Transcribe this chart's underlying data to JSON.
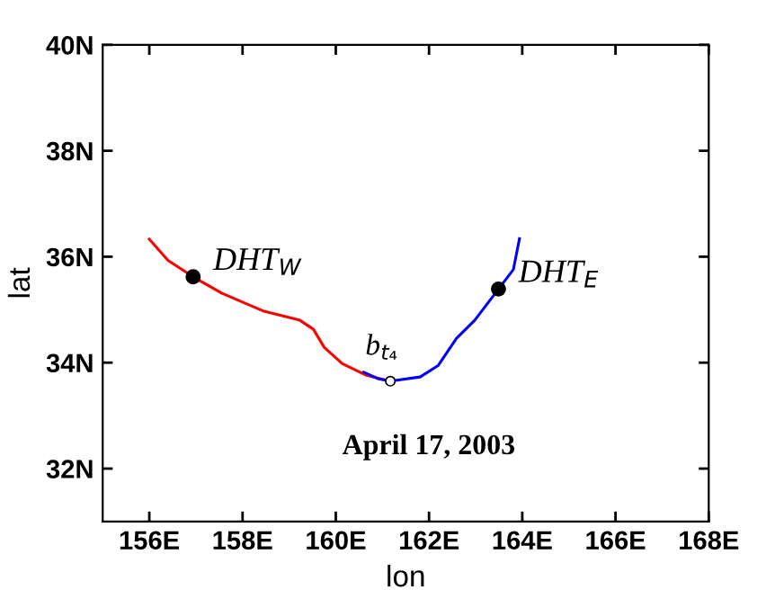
{
  "chart_data": {
    "type": "line",
    "xlabel": "lon",
    "ylabel": "lat",
    "xlim": [
      155,
      168
    ],
    "xticks": [
      {
        "value": 156,
        "label": "156E"
      },
      {
        "value": 158,
        "label": "158E"
      },
      {
        "value": 160,
        "label": "160E"
      },
      {
        "value": 162,
        "label": "162E"
      },
      {
        "value": 164,
        "label": "164E"
      },
      {
        "value": 166,
        "label": "166E"
      },
      {
        "value": 168,
        "label": "168E"
      }
    ],
    "ylim": [
      31,
      40
    ],
    "yticks": [
      {
        "value": 32,
        "label": "32N"
      },
      {
        "value": 34,
        "label": "34N"
      },
      {
        "value": 36,
        "label": "36N"
      },
      {
        "value": 38,
        "label": "38N"
      },
      {
        "value": 40,
        "label": "40N"
      }
    ],
    "grid": false,
    "series": [
      {
        "color": "#ff0000",
        "x": [
          156.0,
          156.4,
          156.94,
          157.56,
          158.46,
          159.23,
          159.52,
          159.75,
          160.14,
          160.66,
          161.17
        ],
        "values": [
          36.33,
          35.93,
          35.62,
          35.31,
          34.97,
          34.8,
          34.63,
          34.29,
          33.98,
          33.76,
          33.65
        ]
      },
      {
        "color": "#0000ff",
        "x": [
          160.6,
          160.9,
          161.17,
          161.81,
          162.2,
          162.59,
          162.98,
          163.49,
          163.81,
          163.94
        ],
        "values": [
          33.82,
          33.7,
          33.65,
          33.73,
          33.95,
          34.46,
          34.8,
          35.39,
          35.76,
          36.34
        ]
      },
      {
        "type": "scatter",
        "name": "DHT$_{W}$",
        "color": "#000000",
        "marker": "circle",
        "x": [
          156.94
        ],
        "values": [
          35.62
        ]
      },
      {
        "type": "scatter",
        "name": "DHT$_{E}$",
        "color": "#000000",
        "marker": "circle",
        "x": [
          163.49
        ],
        "values": [
          35.39
        ]
      },
      {
        "type": "scatter",
        "name": "b$_{t₄}$",
        "color": "#ffffff",
        "marker": "circle",
        "x": [
          161.17
        ],
        "values": [
          33.65
        ]
      }
    ],
    "annotations": [
      "April 17, 2003"
    ]
  }
}
